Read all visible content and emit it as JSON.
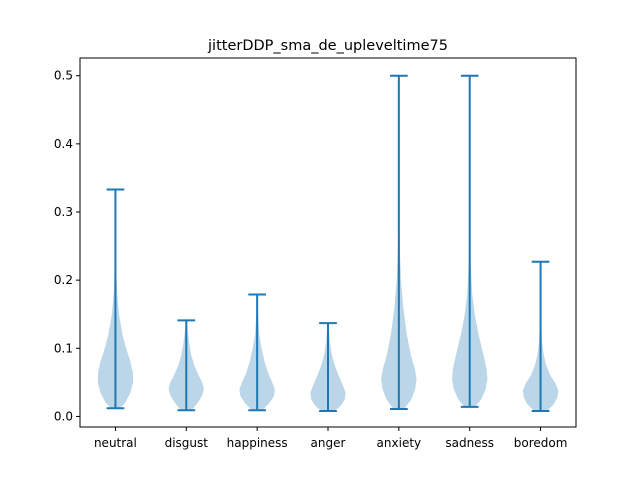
{
  "chart_data": {
    "type": "violin",
    "title": "jitterDDP_sma_de_upleveltime75",
    "xlabel": "",
    "ylabel": "",
    "ylim": [
      -0.0155,
      0.526
    ],
    "yticks": [
      0.0,
      0.1,
      0.2,
      0.3,
      0.4,
      0.5
    ],
    "ytick_labels": [
      "0.0",
      "0.1",
      "0.2",
      "0.3",
      "0.4",
      "0.5"
    ],
    "categories": [
      "neutral",
      "disgust",
      "happiness",
      "anger",
      "anxiety",
      "sadness",
      "boredom"
    ],
    "min": [
      0.012,
      0.009,
      0.009,
      0.008,
      0.011,
      0.014,
      0.008
    ],
    "max": [
      0.333,
      0.141,
      0.179,
      0.137,
      0.5,
      0.5,
      0.227
    ],
    "density": [
      [
        [
          0.012,
          0.25
        ],
        [
          0.02,
          0.55
        ],
        [
          0.035,
          0.85
        ],
        [
          0.05,
          1.0
        ],
        [
          0.065,
          0.98
        ],
        [
          0.08,
          0.85
        ],
        [
          0.1,
          0.6
        ],
        [
          0.12,
          0.4
        ],
        [
          0.15,
          0.2
        ],
        [
          0.18,
          0.1
        ],
        [
          0.21,
          0.05
        ],
        [
          0.25,
          0.03
        ],
        [
          0.3,
          0.015
        ],
        [
          0.333,
          0.01
        ]
      ],
      [
        [
          0.009,
          0.3
        ],
        [
          0.02,
          0.65
        ],
        [
          0.03,
          0.88
        ],
        [
          0.04,
          1.0
        ],
        [
          0.05,
          0.9
        ],
        [
          0.06,
          0.7
        ],
        [
          0.075,
          0.45
        ],
        [
          0.09,
          0.28
        ],
        [
          0.11,
          0.15
        ],
        [
          0.125,
          0.08
        ],
        [
          0.141,
          0.04
        ]
      ],
      [
        [
          0.009,
          0.3
        ],
        [
          0.02,
          0.7
        ],
        [
          0.03,
          0.95
        ],
        [
          0.04,
          1.0
        ],
        [
          0.05,
          0.85
        ],
        [
          0.065,
          0.6
        ],
        [
          0.08,
          0.42
        ],
        [
          0.1,
          0.25
        ],
        [
          0.12,
          0.12
        ],
        [
          0.15,
          0.05
        ],
        [
          0.179,
          0.02
        ]
      ],
      [
        [
          0.008,
          0.35
        ],
        [
          0.015,
          0.7
        ],
        [
          0.025,
          0.95
        ],
        [
          0.035,
          1.0
        ],
        [
          0.045,
          0.85
        ],
        [
          0.06,
          0.6
        ],
        [
          0.075,
          0.38
        ],
        [
          0.09,
          0.22
        ],
        [
          0.11,
          0.1
        ],
        [
          0.137,
          0.04
        ]
      ],
      [
        [
          0.011,
          0.3
        ],
        [
          0.025,
          0.7
        ],
        [
          0.04,
          0.92
        ],
        [
          0.055,
          1.0
        ],
        [
          0.07,
          0.9
        ],
        [
          0.09,
          0.68
        ],
        [
          0.12,
          0.45
        ],
        [
          0.16,
          0.25
        ],
        [
          0.2,
          0.12
        ],
        [
          0.25,
          0.05
        ],
        [
          0.3,
          0.02
        ],
        [
          0.4,
          0.01
        ],
        [
          0.5,
          0.005
        ]
      ],
      [
        [
          0.014,
          0.3
        ],
        [
          0.025,
          0.65
        ],
        [
          0.04,
          0.9
        ],
        [
          0.055,
          1.0
        ],
        [
          0.07,
          0.95
        ],
        [
          0.09,
          0.78
        ],
        [
          0.12,
          0.5
        ],
        [
          0.15,
          0.28
        ],
        [
          0.18,
          0.14
        ],
        [
          0.22,
          0.06
        ],
        [
          0.3,
          0.02
        ],
        [
          0.4,
          0.01
        ],
        [
          0.5,
          0.005
        ]
      ],
      [
        [
          0.008,
          0.35
        ],
        [
          0.018,
          0.75
        ],
        [
          0.028,
          0.95
        ],
        [
          0.038,
          1.0
        ],
        [
          0.048,
          0.85
        ],
        [
          0.06,
          0.55
        ],
        [
          0.075,
          0.32
        ],
        [
          0.09,
          0.18
        ],
        [
          0.11,
          0.08
        ],
        [
          0.15,
          0.03
        ],
        [
          0.2,
          0.01
        ],
        [
          0.227,
          0.005
        ]
      ]
    ]
  }
}
